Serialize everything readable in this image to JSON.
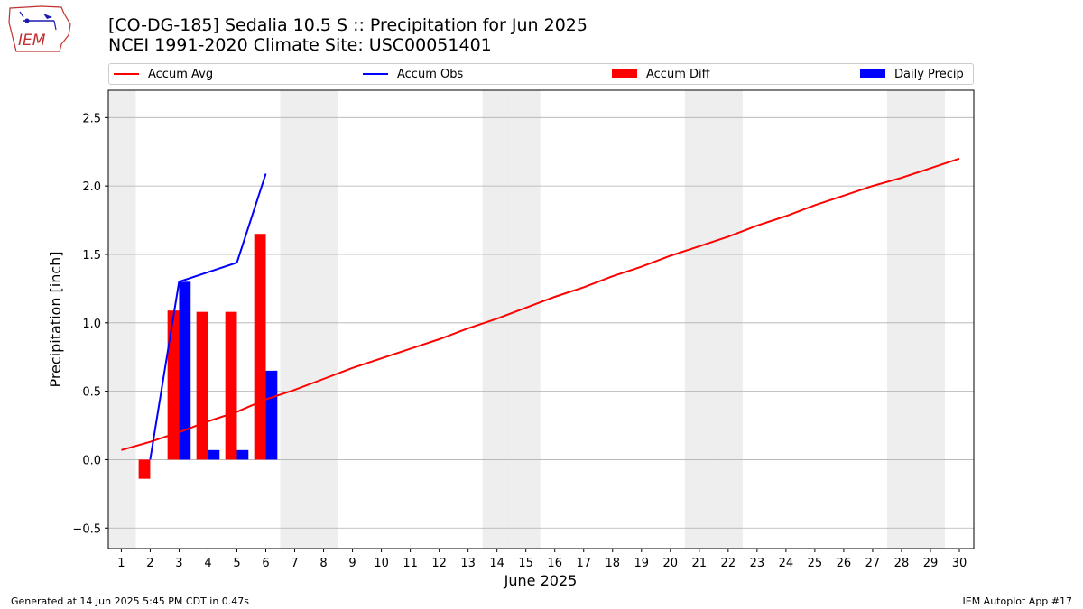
{
  "header": {
    "title_line1": "[CO-DG-185] Sedalia 10.5 S :: Precipitation for Jun 2025",
    "title_line2": "NCEI 1991-2020 Climate Site: USC00051401",
    "logo_text": "IEM"
  },
  "footer": {
    "generated": "Generated at 14 Jun 2025 5:45 PM CDT in 0.47s",
    "app": "IEM Autoplot App #17"
  },
  "legend": [
    {
      "label": "Accum Avg",
      "kind": "line",
      "color": "#ff0000"
    },
    {
      "label": "Accum Obs",
      "kind": "line",
      "color": "#0000ff"
    },
    {
      "label": "Accum Diff",
      "kind": "box",
      "color": "#ff0000"
    },
    {
      "label": "Daily Precip",
      "kind": "box",
      "color": "#0000ff"
    }
  ],
  "chart_data": {
    "type": "bar",
    "xlabel": "June 2025",
    "ylabel": "Precipitation [inch]",
    "ylim": [
      -0.65,
      2.7
    ],
    "yticks": [
      -0.5,
      0.0,
      0.5,
      1.0,
      1.5,
      2.0,
      2.5
    ],
    "ytick_labels": [
      "−0.5",
      "0.0",
      "0.5",
      "1.0",
      "1.5",
      "2.0",
      "2.5"
    ],
    "x": [
      1,
      2,
      3,
      4,
      5,
      6,
      7,
      8,
      9,
      10,
      11,
      12,
      13,
      14,
      15,
      16,
      17,
      18,
      19,
      20,
      21,
      22,
      23,
      24,
      25,
      26,
      27,
      28,
      29,
      30
    ],
    "weekend_days": [
      1,
      7,
      8,
      14,
      15,
      21,
      22,
      28,
      29
    ],
    "grid": "horizontal",
    "colors": {
      "avg": "#ff0000",
      "obs": "#0000ff",
      "diff": "#ff0000",
      "daily": "#0000ff",
      "weekend": "#eeeeee",
      "grid": "#b0b0b0"
    },
    "series": [
      {
        "name": "Accum Avg",
        "type": "line",
        "values": [
          0.07,
          0.13,
          0.2,
          0.28,
          0.35,
          0.44,
          0.51,
          0.59,
          0.67,
          0.74,
          0.81,
          0.88,
          0.96,
          1.03,
          1.11,
          1.19,
          1.26,
          1.34,
          1.41,
          1.49,
          1.56,
          1.63,
          1.71,
          1.78,
          1.86,
          1.93,
          2.0,
          2.06,
          2.13,
          2.2
        ]
      },
      {
        "name": "Accum Obs",
        "type": "line",
        "x": [
          2,
          3,
          4,
          5,
          6
        ],
        "values": [
          0.0,
          1.3,
          1.37,
          1.44,
          2.09
        ]
      },
      {
        "name": "Accum Diff",
        "type": "bar",
        "x": [
          2,
          3,
          4,
          5,
          6
        ],
        "values": [
          -0.14,
          1.09,
          1.08,
          1.08,
          1.65
        ]
      },
      {
        "name": "Daily Precip",
        "type": "bar",
        "x": [
          3,
          4,
          5,
          6
        ],
        "values": [
          1.3,
          0.07,
          0.07,
          0.65
        ]
      }
    ]
  }
}
